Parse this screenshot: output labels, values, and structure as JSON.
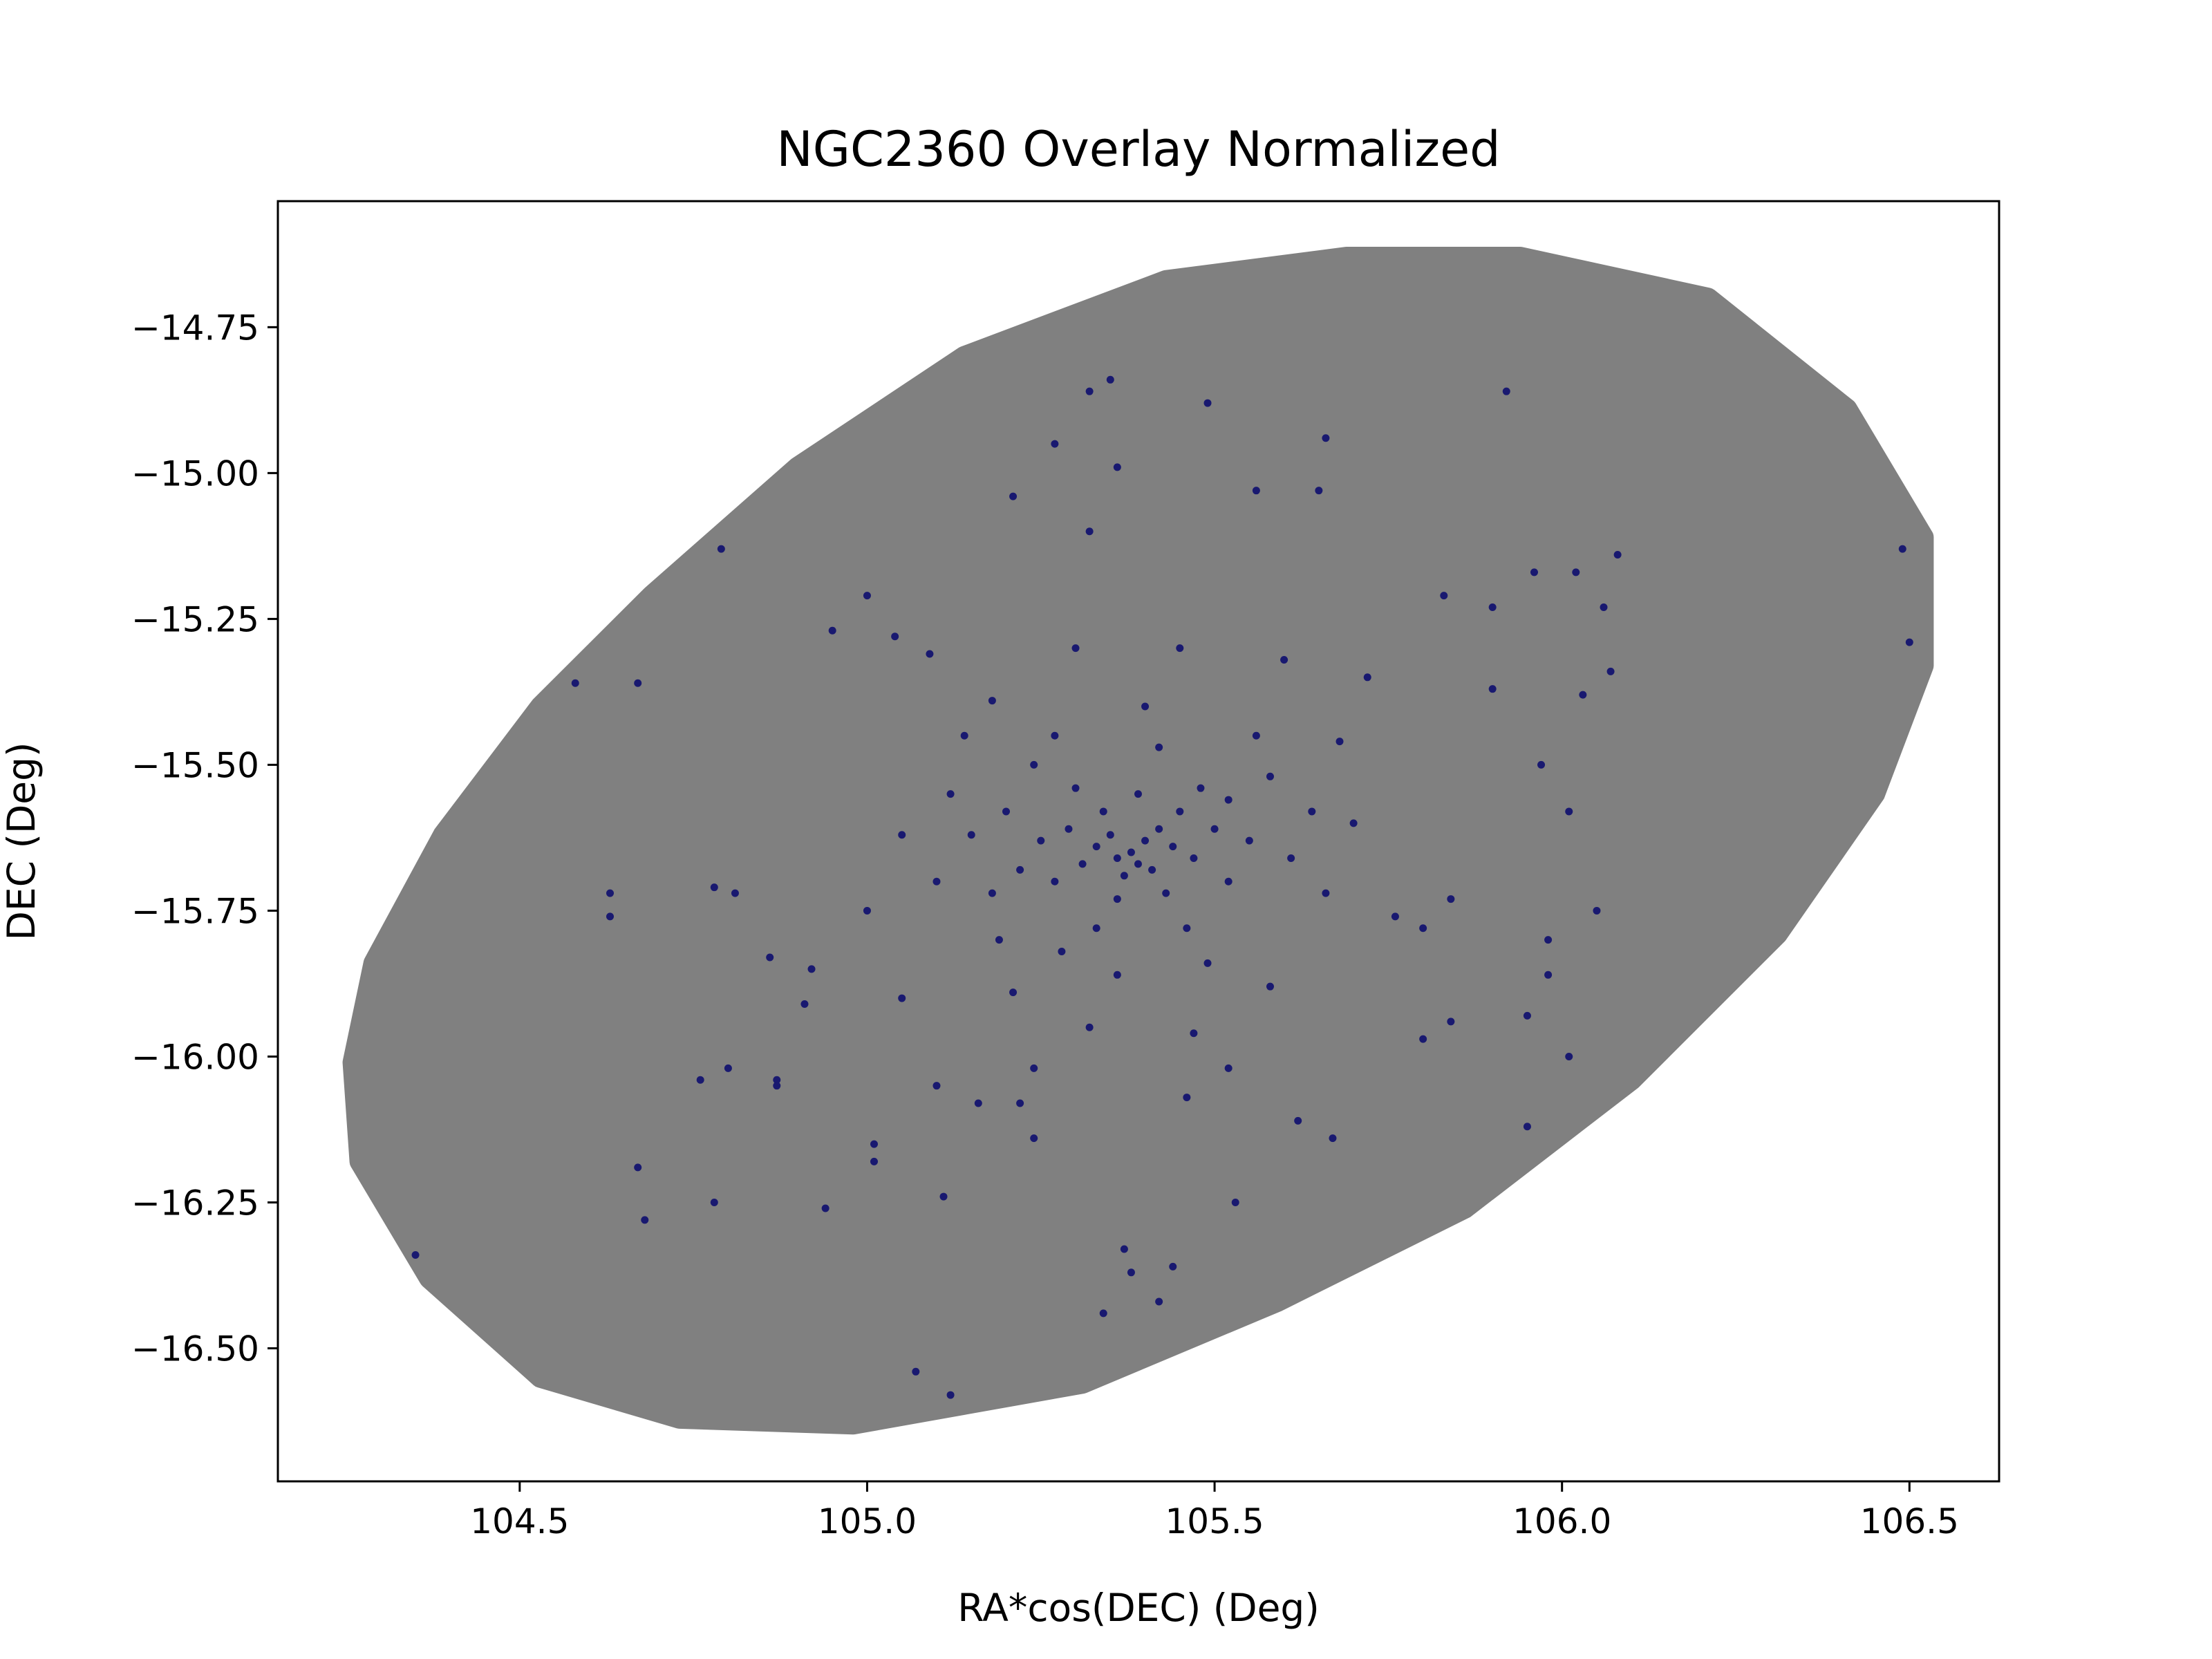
{
  "chart_data": {
    "type": "scatter",
    "title": "NGC2360 Overlay Normalized",
    "xlabel": "RA*cos(DEC) (Deg)",
    "ylabel": "DEC (Deg)",
    "xlim": [
      104.152,
      106.629
    ],
    "ylim": [
      -16.728,
      -14.534
    ],
    "xticks": [
      104.5,
      {
        "value": 105.0,
        "label": "105.0"
      },
      105.5,
      {
        "value": 106.0,
        "label": "106.0"
      },
      106.5
    ],
    "yticks": [
      {
        "value": -14.75,
        "label": "−14.75"
      },
      {
        "value": -15.0,
        "label": "−15.00"
      },
      {
        "value": -15.25,
        "label": "−15.25"
      },
      {
        "value": -15.5,
        "label": "−15.50"
      },
      {
        "value": -15.75,
        "label": "−15.75"
      },
      {
        "value": -16.0,
        "label": "−16.00"
      },
      {
        "value": -16.25,
        "label": "−16.25"
      },
      {
        "value": -16.5,
        "label": "−16.50"
      }
    ],
    "series": [
      {
        "color": "#808080",
        "fill": true,
        "x": [
          105.94,
          106.21,
          106.41,
          106.52,
          106.52,
          106.45,
          106.31,
          106.1,
          105.86,
          105.59,
          105.31,
          104.98,
          104.73,
          104.53,
          104.37,
          104.27,
          104.26,
          104.29,
          104.39,
          104.53,
          104.69,
          104.9,
          105.14,
          105.43,
          105.69
        ],
        "y": [
          -14.63,
          -14.7,
          -14.89,
          -15.11,
          -15.33,
          -15.55,
          -15.79,
          -16.04,
          -16.26,
          -16.42,
          -16.56,
          -16.63,
          -16.62,
          -16.55,
          -16.38,
          -16.18,
          -16.01,
          -15.84,
          -15.62,
          -15.4,
          -15.21,
          -14.99,
          -14.8,
          -14.67,
          -14.63
        ]
      },
      {
        "color": "#191970",
        "fill": false,
        "x": [
          104.35,
          104.58,
          104.67,
          104.63,
          104.63,
          104.79,
          104.67,
          104.68,
          104.78,
          104.76,
          104.8,
          104.78,
          104.81,
          104.86,
          104.87,
          104.87,
          104.94,
          104.91,
          104.92,
          104.95,
          105.0,
          105.04,
          105.09,
          105.01,
          105.01,
          105.07,
          105.12,
          105.11,
          105.21,
          105.27,
          105.32,
          105.35,
          105.36,
          105.49,
          105.66,
          105.56,
          105.65,
          105.32,
          105.92,
          106.49,
          106.5,
          105.96,
          106.02,
          106.08,
          106.06,
          106.07,
          106.03,
          105.9,
          105.83,
          105.9,
          106.01,
          105.97,
          106.05,
          105.98,
          105.98,
          105.95,
          106.01,
          105.95,
          105.84,
          105.8,
          105.84,
          105.8,
          105.67,
          105.62,
          105.53,
          105.37,
          105.38,
          105.42,
          105.44,
          105.34,
          105.46,
          105.24,
          105.1,
          105.16,
          105.22,
          105.38,
          105.36,
          105.4,
          105.39,
          105.35,
          105.42,
          105.37,
          105.33,
          105.41,
          105.44,
          105.31,
          105.34,
          105.45,
          105.29,
          105.47,
          105.36,
          105.43,
          105.27,
          105.5,
          105.48,
          105.25,
          105.3,
          105.39,
          105.52,
          105.22,
          105.55,
          105.2,
          105.33,
          105.46,
          105.28,
          105.52,
          105.18,
          105.58,
          105.24,
          105.42,
          105.61,
          105.15,
          105.36,
          105.49,
          105.19,
          105.64,
          105.12,
          105.27,
          105.56,
          105.1,
          105.66,
          105.4,
          105.21,
          105.58,
          105.05,
          105.7,
          105.32,
          105.47,
          105.14,
          105.68,
          105.0,
          105.76,
          105.24,
          105.52,
          105.05,
          105.72,
          105.18,
          105.45,
          105.3,
          105.6
        ],
        "y": [
          -16.34,
          -15.36,
          -15.36,
          -15.72,
          -15.76,
          -15.13,
          -16.19,
          -16.28,
          -16.25,
          -16.04,
          -16.02,
          -15.71,
          -15.72,
          -15.83,
          -16.04,
          -16.05,
          -16.26,
          -15.91,
          -15.85,
          -15.27,
          -15.21,
          -15.28,
          -15.31,
          -16.15,
          -16.18,
          -16.54,
          -16.58,
          -16.24,
          -15.04,
          -14.95,
          -14.86,
          -14.84,
          -14.99,
          -14.88,
          -14.94,
          -15.03,
          -15.03,
          -15.1,
          -14.86,
          -15.13,
          -15.29,
          -15.17,
          -15.17,
          -15.14,
          -15.23,
          -15.34,
          -15.38,
          -15.23,
          -15.21,
          -15.37,
          -15.58,
          -15.5,
          -15.75,
          -15.8,
          -15.86,
          -15.93,
          -16.0,
          -16.12,
          -15.94,
          -15.97,
          -15.73,
          -15.78,
          -16.14,
          -16.11,
          -16.25,
          -16.33,
          -16.37,
          -16.42,
          -16.36,
          -16.44,
          -16.07,
          -16.14,
          -16.05,
          -16.08,
          -16.08,
          -15.65,
          -15.66,
          -15.63,
          -15.67,
          -15.62,
          -15.61,
          -15.69,
          -15.64,
          -15.68,
          -15.64,
          -15.67,
          -15.58,
          -15.58,
          -15.61,
          -15.66,
          -15.73,
          -15.72,
          -15.7,
          -15.61,
          -15.54,
          -15.63,
          -15.54,
          -15.55,
          -15.56,
          -15.68,
          -15.63,
          -15.58,
          -15.78,
          -15.78,
          -15.82,
          -15.7,
          -15.72,
          -15.52,
          -15.5,
          -15.47,
          -15.66,
          -15.62,
          -15.86,
          -15.84,
          -15.8,
          -15.58,
          -15.55,
          -15.45,
          -15.45,
          -15.7,
          -15.72,
          -15.4,
          -15.89,
          -15.88,
          -15.62,
          -15.6,
          -15.95,
          -15.96,
          -15.45,
          -15.46,
          -15.75,
          -15.76,
          -16.02,
          -16.02,
          -15.9,
          -15.35,
          -15.39,
          -15.3,
          -15.3,
          -15.32
        ]
      }
    ]
  }
}
